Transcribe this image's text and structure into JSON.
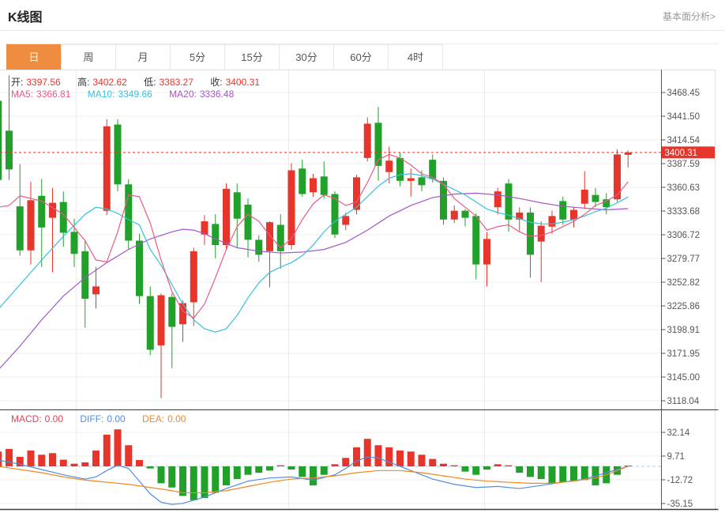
{
  "header": {
    "title": "K线图",
    "link": "基本面分析>"
  },
  "tabs": {
    "items": [
      "日",
      "周",
      "月",
      "5分",
      "15分",
      "30分",
      "60分",
      "4时"
    ],
    "selected": 0
  },
  "legend": {
    "open_label": "开:",
    "open": "3397.56",
    "high_label": "高:",
    "high": "3402.62",
    "low_label": "低:",
    "low": "3383.27",
    "close_label": "收:",
    "close": "3400.31",
    "ma5_label": "MA5:",
    "ma5": "3366.81",
    "ma10_label": "MA10:",
    "ma10": "3349.66",
    "ma20_label": "MA20:",
    "ma20": "3336.48"
  },
  "macd_legend": {
    "macd_label": "MACD:",
    "macd": "0.00",
    "diff_label": "DIFF:",
    "diff": "0.00",
    "dea_label": "DEA:",
    "dea": "0.00"
  },
  "colors": {
    "up": "#e8352b",
    "down": "#21a12a",
    "ma5": "#ec5a85",
    "ma10": "#36c2dd",
    "ma20": "#a556c8",
    "diff": "#4f8ede",
    "dea": "#ef8822",
    "grid": "#ededed",
    "vgrid": "#ececec",
    "axis": "#555555",
    "zero_dash": "#a9c8e6",
    "tab_accent": "#ef8c40",
    "price_line": "#e8352b",
    "label_text": "#555555"
  },
  "chart_data": {
    "type": "candlestick+macd",
    "title": "K线图 daily gold futures candlestick with MA5/MA10/MA20 and MACD",
    "legend_position": "top-left",
    "grid": true,
    "price_axis": {
      "ticks": [
        3468.45,
        3441.5,
        3414.54,
        3387.59,
        3360.63,
        3333.68,
        3306.72,
        3279.77,
        3252.82,
        3225.86,
        3198.91,
        3171.95,
        3145.0,
        3118.04
      ]
    },
    "macd_axis": {
      "ticks": [
        32.14,
        9.71,
        -12.72,
        -35.15
      ]
    },
    "last_price": 3400.31,
    "last_price_label": "3400.31",
    "last_ohlc": {
      "open": 3397.56,
      "high": 3402.62,
      "low": 3383.27,
      "close": 3400.31
    },
    "ma_last": {
      "ma5": 3366.81,
      "ma10": 3349.66,
      "ma20": 3336.48
    },
    "macd_last": {
      "macd": 0.0,
      "diff": 0.0,
      "dea": 0.0
    },
    "candles": [
      [
        3459,
        3469,
        3365,
        3369
      ],
      [
        3425,
        3488,
        3369,
        3381
      ],
      [
        3339,
        3387,
        3283,
        3289
      ],
      [
        3289,
        3367,
        3273,
        3346
      ],
      [
        3351,
        3370,
        3270,
        3315
      ],
      [
        3326,
        3360,
        3264,
        3343
      ],
      [
        3344,
        3356,
        3293,
        3309
      ],
      [
        3310,
        3325,
        3270,
        3285
      ],
      [
        3288,
        3300,
        3201,
        3234
      ],
      [
        3239,
        3270,
        3223,
        3248
      ],
      [
        3334,
        3438,
        3329,
        3430
      ],
      [
        3432,
        3438,
        3356,
        3364
      ],
      [
        3364,
        3370,
        3290,
        3300
      ],
      [
        3300,
        3308,
        3228,
        3237
      ],
      [
        3237,
        3248,
        3170,
        3176
      ],
      [
        3181,
        3240,
        3121,
        3238
      ],
      [
        3236,
        3240,
        3155,
        3202
      ],
      [
        3205,
        3232,
        3185,
        3229
      ],
      [
        3230,
        3292,
        3203,
        3288
      ],
      [
        3307,
        3329,
        3295,
        3322
      ],
      [
        3319,
        3330,
        3280,
        3295
      ],
      [
        3295,
        3365,
        3290,
        3359
      ],
      [
        3355,
        3365,
        3292,
        3325
      ],
      [
        3341,
        3348,
        3281,
        3301
      ],
      [
        3301,
        3306,
        3276,
        3284
      ],
      [
        3288,
        3322,
        3247,
        3321
      ],
      [
        3318,
        3330,
        3268,
        3288
      ],
      [
        3295,
        3388,
        3290,
        3380
      ],
      [
        3382,
        3392,
        3350,
        3353
      ],
      [
        3355,
        3376,
        3350,
        3371
      ],
      [
        3373,
        3390,
        3348,
        3352
      ],
      [
        3353,
        3356,
        3303,
        3307
      ],
      [
        3318,
        3332,
        3312,
        3328
      ],
      [
        3335,
        3375,
        3330,
        3372
      ],
      [
        3394,
        3440,
        3390,
        3433
      ],
      [
        3434,
        3452,
        3368,
        3385
      ],
      [
        3378,
        3407,
        3365,
        3391
      ],
      [
        3394,
        3400,
        3362,
        3368
      ],
      [
        3368,
        3382,
        3350,
        3371
      ],
      [
        3372,
        3380,
        3356,
        3363
      ],
      [
        3392,
        3398,
        3366,
        3370
      ],
      [
        3368,
        3372,
        3318,
        3324
      ],
      [
        3324,
        3340,
        3320,
        3334
      ],
      [
        3334,
        3336,
        3316,
        3326
      ],
      [
        3328,
        3331,
        3256,
        3273
      ],
      [
        3273,
        3310,
        3248,
        3302
      ],
      [
        3338,
        3360,
        3330,
        3356
      ],
      [
        3365,
        3370,
        3310,
        3324
      ],
      [
        3324,
        3338,
        3310,
        3332
      ],
      [
        3332,
        3338,
        3258,
        3284
      ],
      [
        3299,
        3322,
        3253,
        3317
      ],
      [
        3316,
        3334,
        3308,
        3328
      ],
      [
        3345,
        3350,
        3318,
        3324
      ],
      [
        3324,
        3338,
        3315,
        3335
      ],
      [
        3342,
        3379,
        3336,
        3358
      ],
      [
        3352,
        3360,
        3338,
        3344
      ],
      [
        3347,
        3354,
        3330,
        3338
      ],
      [
        3347,
        3404,
        3344,
        3398
      ],
      [
        3397.56,
        3402.62,
        3383.27,
        3400.31
      ]
    ],
    "ma5": [
      [
        0,
        3338
      ],
      [
        1,
        3340
      ],
      [
        2,
        3351
      ],
      [
        4,
        3345
      ],
      [
        6,
        3330
      ],
      [
        8,
        3300
      ],
      [
        9,
        3278
      ],
      [
        10,
        3276
      ],
      [
        11,
        3310
      ],
      [
        12,
        3352
      ],
      [
        13,
        3350
      ],
      [
        14,
        3320
      ],
      [
        15,
        3278
      ],
      [
        16,
        3242
      ],
      [
        17,
        3220
      ],
      [
        18,
        3212
      ],
      [
        19,
        3228
      ],
      [
        20,
        3258
      ],
      [
        21,
        3290
      ],
      [
        22,
        3316
      ],
      [
        23,
        3330
      ],
      [
        24,
        3322
      ],
      [
        25,
        3306
      ],
      [
        26,
        3292
      ],
      [
        27,
        3302
      ],
      [
        28,
        3324
      ],
      [
        29,
        3342
      ],
      [
        30,
        3352
      ],
      [
        31,
        3348
      ],
      [
        32,
        3340
      ],
      [
        33,
        3344
      ],
      [
        34,
        3366
      ],
      [
        35,
        3392
      ],
      [
        36,
        3398
      ],
      [
        37,
        3394
      ],
      [
        38,
        3386
      ],
      [
        39,
        3376
      ],
      [
        40,
        3372
      ],
      [
        41,
        3364
      ],
      [
        42,
        3348
      ],
      [
        43,
        3338
      ],
      [
        44,
        3328
      ],
      [
        45,
        3312
      ],
      [
        46,
        3316
      ],
      [
        47,
        3318
      ],
      [
        48,
        3310
      ],
      [
        49,
        3305
      ],
      [
        50,
        3306
      ],
      [
        51,
        3310
      ],
      [
        52,
        3316
      ],
      [
        53,
        3322
      ],
      [
        54,
        3330
      ],
      [
        55,
        3340
      ],
      [
        56,
        3345
      ],
      [
        57,
        3352
      ],
      [
        58,
        3366.81
      ]
    ],
    "ma10": [
      [
        0,
        3222
      ],
      [
        2,
        3250
      ],
      [
        4,
        3278
      ],
      [
        6,
        3305
      ],
      [
        8,
        3330
      ],
      [
        9,
        3338
      ],
      [
        10,
        3336
      ],
      [
        11,
        3331
      ],
      [
        12,
        3324
      ],
      [
        13,
        3318
      ],
      [
        14,
        3290
      ],
      [
        15,
        3272
      ],
      [
        16,
        3250
      ],
      [
        17,
        3228
      ],
      [
        18,
        3210
      ],
      [
        19,
        3200
      ],
      [
        20,
        3196
      ],
      [
        21,
        3200
      ],
      [
        22,
        3215
      ],
      [
        23,
        3235
      ],
      [
        24,
        3252
      ],
      [
        25,
        3264
      ],
      [
        26,
        3270
      ],
      [
        27,
        3275
      ],
      [
        28,
        3283
      ],
      [
        29,
        3295
      ],
      [
        30,
        3310
      ],
      [
        31,
        3322
      ],
      [
        32,
        3330
      ],
      [
        33,
        3338
      ],
      [
        34,
        3350
      ],
      [
        35,
        3362
      ],
      [
        36,
        3371
      ],
      [
        37,
        3375
      ],
      [
        38,
        3376
      ],
      [
        39,
        3374
      ],
      [
        40,
        3370
      ],
      [
        41,
        3364
      ],
      [
        42,
        3358
      ],
      [
        43,
        3352
      ],
      [
        44,
        3344
      ],
      [
        45,
        3336
      ],
      [
        46,
        3332
      ],
      [
        47,
        3329
      ],
      [
        48,
        3325
      ],
      [
        49,
        3321
      ],
      [
        50,
        3319
      ],
      [
        51,
        3319
      ],
      [
        52,
        3321
      ],
      [
        53,
        3324
      ],
      [
        54,
        3328
      ],
      [
        55,
        3333
      ],
      [
        56,
        3337
      ],
      [
        57,
        3343
      ],
      [
        58,
        3349.66
      ]
    ],
    "ma20": [
      [
        0,
        3153
      ],
      [
        2,
        3180
      ],
      [
        4,
        3210
      ],
      [
        6,
        3237
      ],
      [
        8,
        3258
      ],
      [
        10,
        3275
      ],
      [
        12,
        3290
      ],
      [
        14,
        3302
      ],
      [
        16,
        3310
      ],
      [
        17,
        3313
      ],
      [
        18,
        3312
      ],
      [
        19,
        3308
      ],
      [
        20,
        3302
      ],
      [
        21,
        3297
      ],
      [
        22,
        3292
      ],
      [
        24,
        3288
      ],
      [
        26,
        3286
      ],
      [
        28,
        3287
      ],
      [
        30,
        3290
      ],
      [
        32,
        3298
      ],
      [
        34,
        3312
      ],
      [
        36,
        3328
      ],
      [
        38,
        3340
      ],
      [
        40,
        3349
      ],
      [
        42,
        3353
      ],
      [
        44,
        3354
      ],
      [
        46,
        3352
      ],
      [
        48,
        3348
      ],
      [
        50,
        3343
      ],
      [
        52,
        3339
      ],
      [
        54,
        3337
      ],
      [
        56,
        3335
      ],
      [
        58,
        3336.48
      ]
    ],
    "macd_hist": [
      14,
      16.5,
      9,
      15,
      11,
      12.5,
      6.3,
      2.5,
      3.8,
      15,
      30,
      35,
      20,
      6,
      -2,
      -16,
      -20,
      -28,
      -32,
      -30,
      -25,
      -18,
      -12,
      -8,
      -6,
      -4,
      1,
      -3,
      -10,
      -18,
      -8,
      2,
      8,
      18,
      26,
      20,
      18,
      15,
      14,
      11,
      7,
      2.5,
      1,
      -5,
      -8,
      -3,
      2,
      1,
      -6,
      -10,
      -12,
      -16,
      -15,
      -14,
      -13,
      -18,
      -16,
      -8,
      0
    ],
    "diff": [
      [
        0,
        6
      ],
      [
        2,
        2
      ],
      [
        4,
        -3
      ],
      [
        6,
        -8
      ],
      [
        8,
        -12
      ],
      [
        9,
        -10
      ],
      [
        10,
        -4
      ],
      [
        11,
        1
      ],
      [
        12,
        -2
      ],
      [
        13,
        -14
      ],
      [
        14,
        -26
      ],
      [
        15,
        -34
      ],
      [
        16,
        -36
      ],
      [
        17,
        -35
      ],
      [
        19,
        -29
      ],
      [
        21,
        -21
      ],
      [
        23,
        -14
      ],
      [
        25,
        -11
      ],
      [
        27,
        -10
      ],
      [
        29,
        -13
      ],
      [
        31,
        -8
      ],
      [
        32,
        -2
      ],
      [
        33,
        5
      ],
      [
        34,
        9
      ],
      [
        35,
        8
      ],
      [
        36,
        4
      ],
      [
        37,
        0
      ],
      [
        38,
        -4
      ],
      [
        40,
        -12
      ],
      [
        42,
        -17
      ],
      [
        44,
        -20
      ],
      [
        46,
        -19
      ],
      [
        48,
        -21
      ],
      [
        50,
        -18
      ],
      [
        52,
        -15
      ],
      [
        54,
        -12
      ],
      [
        56,
        -6
      ],
      [
        57,
        -3
      ],
      [
        58,
        0
      ]
    ],
    "dea": [
      [
        0,
        0
      ],
      [
        2,
        -3
      ],
      [
        4,
        -6
      ],
      [
        6,
        -10
      ],
      [
        8,
        -13
      ],
      [
        10,
        -15
      ],
      [
        12,
        -17
      ],
      [
        14,
        -20
      ],
      [
        16,
        -23
      ],
      [
        17,
        -25
      ],
      [
        19,
        -25
      ],
      [
        21,
        -23
      ],
      [
        23,
        -19
      ],
      [
        25,
        -15
      ],
      [
        27,
        -12
      ],
      [
        29,
        -11
      ],
      [
        31,
        -9
      ],
      [
        33,
        -6
      ],
      [
        35,
        -4
      ],
      [
        37,
        -4
      ],
      [
        39,
        -6
      ],
      [
        41,
        -9
      ],
      [
        43,
        -12
      ],
      [
        45,
        -14
      ],
      [
        47,
        -15
      ],
      [
        49,
        -16
      ],
      [
        51,
        -16
      ],
      [
        53,
        -14
      ],
      [
        55,
        -11
      ],
      [
        56,
        -8
      ],
      [
        57,
        -4
      ],
      [
        58,
        0
      ]
    ]
  }
}
